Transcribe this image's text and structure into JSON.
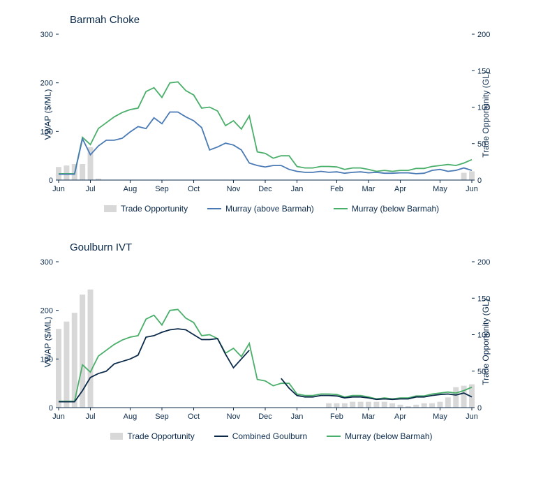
{
  "chart1": {
    "type": "line",
    "title": "Barmah Choke",
    "y_left_label": "VWAP ($/ML)",
    "y_right_label": "Trade Opportunity (GL)",
    "y_left": {
      "min": 0,
      "max": 300,
      "step": 100
    },
    "y_right": {
      "min": 0,
      "max": 200,
      "step": 50
    },
    "x_labels": [
      "Jun",
      "Jul",
      "Aug",
      "Sep",
      "Oct",
      "Nov",
      "Dec",
      "Jan",
      "Feb",
      "Mar",
      "Apr",
      "May",
      "Jun"
    ],
    "colors": {
      "axis": "#0b2a4a",
      "text": "#0b2a4a",
      "trade_opportunity": "#d8d8d8",
      "series_a": "#4a7ab5",
      "series_b": "#4aaf6a",
      "background": "#ffffff"
    },
    "line_width": 1.8,
    "legend": [
      {
        "label": "Trade Opportunity",
        "type": "bar",
        "color": "#d8d8d8"
      },
      {
        "label": "Murray (above Barmah)",
        "type": "line",
        "color": "#4a7ab5"
      },
      {
        "label": "Murray (below Barmah)",
        "type": "line",
        "color": "#4aaf6a"
      }
    ],
    "trade_opportunity": [
      18,
      20,
      22,
      22,
      45,
      2,
      0,
      0,
      0,
      0,
      0,
      0,
      0,
      0,
      0,
      0,
      0,
      0,
      0,
      0,
      0,
      0,
      0,
      0,
      0,
      0,
      0,
      0,
      0,
      0,
      0,
      0,
      0,
      0,
      0,
      0,
      0,
      0,
      0,
      0,
      0,
      0,
      0,
      0,
      0,
      0,
      0,
      0,
      0,
      0,
      0,
      10,
      12
    ],
    "series_a_values": [
      12,
      12,
      12,
      85,
      52,
      70,
      82,
      82,
      86,
      99,
      110,
      106,
      128,
      116,
      140,
      140,
      130,
      122,
      108,
      62,
      68,
      76,
      72,
      62,
      35,
      30,
      27,
      30,
      30,
      22,
      18,
      16,
      16,
      18,
      16,
      17,
      14,
      16,
      17,
      15,
      16,
      14,
      14,
      15,
      15,
      13,
      14,
      20,
      22,
      18,
      20,
      25,
      20
    ],
    "series_b_values": [
      13,
      13,
      13,
      88,
      73,
      106,
      118,
      130,
      139,
      145,
      148,
      182,
      190,
      170,
      200,
      202,
      184,
      175,
      148,
      150,
      142,
      112,
      122,
      105,
      132,
      58,
      55,
      45,
      50,
      50,
      28,
      25,
      25,
      28,
      28,
      27,
      22,
      25,
      25,
      22,
      18,
      20,
      18,
      20,
      20,
      24,
      24,
      28,
      30,
      32,
      30,
      35,
      42
    ]
  },
  "chart2": {
    "type": "line",
    "title": "Goulburn IVT",
    "y_left_label": "VWAP ($/ML)",
    "y_right_label": "Trade Opportunity (GL)",
    "y_left": {
      "min": 0,
      "max": 300,
      "step": 100
    },
    "y_right": {
      "min": 0,
      "max": 200,
      "step": 50
    },
    "x_labels": [
      "Jun",
      "Jul",
      "Aug",
      "Sep",
      "Oct",
      "Nov",
      "Dec",
      "Jan",
      "Feb",
      "Mar",
      "Apr",
      "May",
      "Jun"
    ],
    "colors": {
      "axis": "#0b2a4a",
      "text": "#0b2a4a",
      "trade_opportunity": "#d8d8d8",
      "series_a": "#0b2a4a",
      "series_b": "#4aaf6a",
      "background": "#ffffff"
    },
    "line_width": 1.8,
    "legend": [
      {
        "label": "Trade Opportunity",
        "type": "bar",
        "color": "#d8d8d8"
      },
      {
        "label": "Combined Goulburn",
        "type": "line",
        "color": "#0b2a4a"
      },
      {
        "label": "Murray (below Barmah)",
        "type": "line",
        "color": "#4aaf6a"
      }
    ],
    "trade_opportunity": [
      108,
      118,
      130,
      155,
      162,
      0,
      0,
      0,
      0,
      0,
      0,
      0,
      0,
      0,
      0,
      0,
      0,
      0,
      0,
      0,
      0,
      0,
      0,
      0,
      0,
      0,
      0,
      0,
      0,
      0,
      0,
      0,
      0,
      0,
      6,
      6,
      6,
      8,
      8,
      8,
      8,
      8,
      6,
      4,
      2,
      4,
      6,
      6,
      8,
      14,
      28,
      30,
      32
    ],
    "series_a_values": [
      12,
      12,
      12,
      35,
      62,
      70,
      75,
      90,
      95,
      100,
      108,
      145,
      148,
      155,
      160,
      162,
      160,
      150,
      140,
      140,
      142,
      110,
      82,
      100,
      118,
      null,
      null,
      null,
      60,
      40,
      25,
      22,
      22,
      25,
      25,
      24,
      20,
      22,
      22,
      20,
      17,
      18,
      17,
      18,
      18,
      22,
      22,
      25,
      27,
      28,
      26,
      30,
      22
    ],
    "series_b_values": [
      13,
      13,
      13,
      88,
      73,
      106,
      118,
      130,
      139,
      145,
      148,
      182,
      190,
      170,
      200,
      202,
      184,
      175,
      148,
      150,
      142,
      112,
      122,
      105,
      132,
      58,
      55,
      45,
      50,
      50,
      28,
      25,
      25,
      28,
      28,
      27,
      22,
      25,
      25,
      22,
      18,
      20,
      18,
      20,
      20,
      24,
      24,
      28,
      30,
      32,
      30,
      35,
      42
    ]
  }
}
